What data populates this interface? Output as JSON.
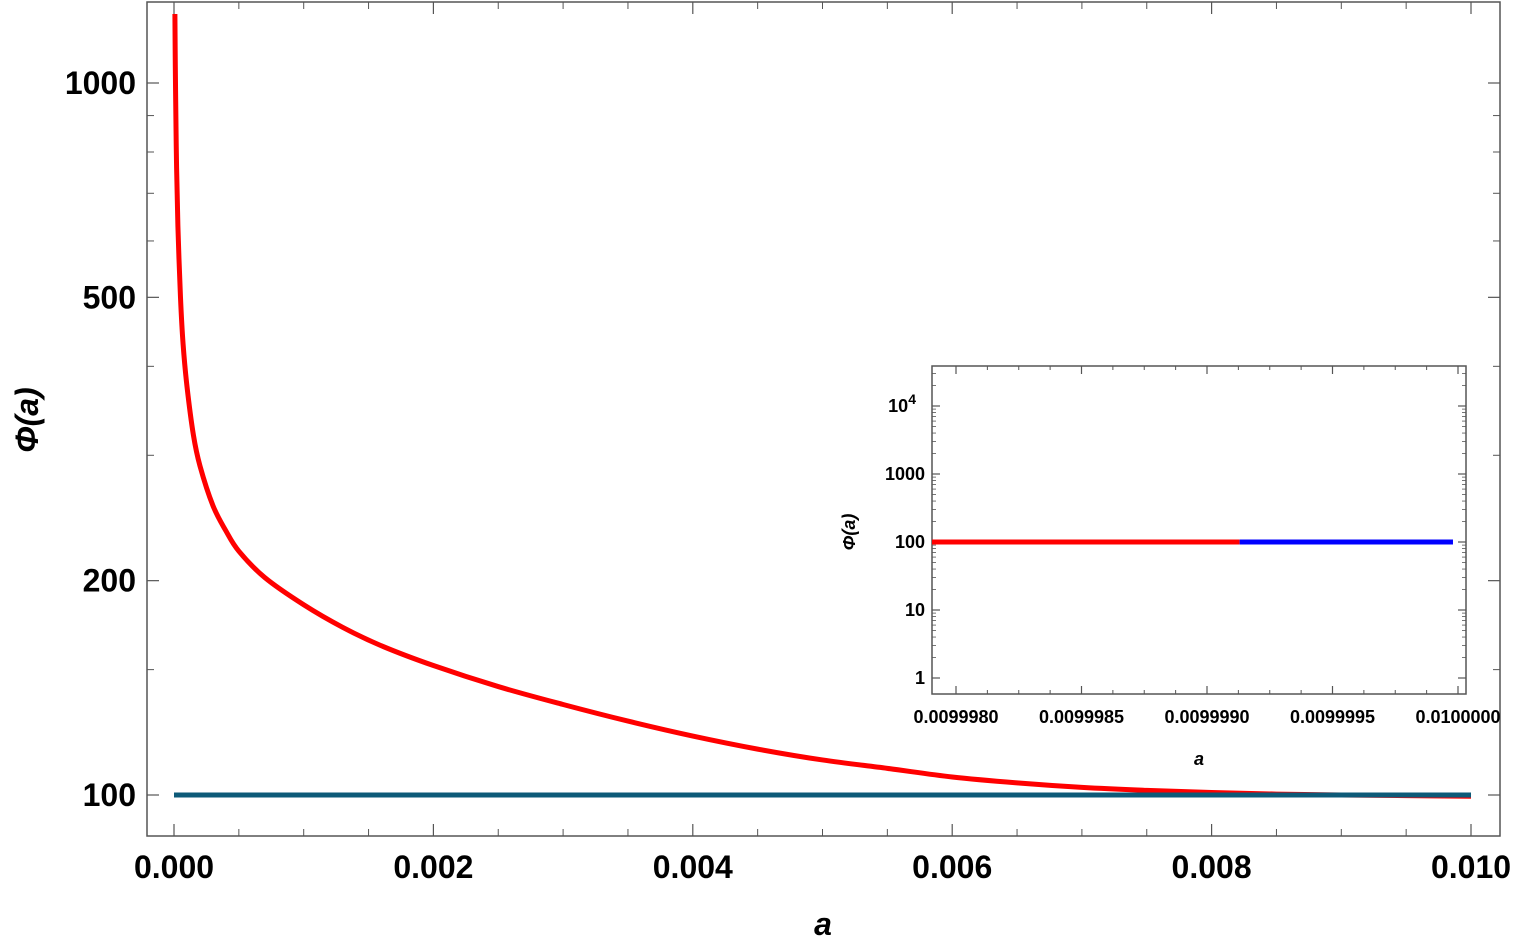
{
  "colors": {
    "frame": "#555555",
    "main_red": "#ff0000",
    "main_blue": "#0d5a78",
    "inset_red": "#ff0000",
    "inset_blue": "#0000ff"
  },
  "chart_data": [
    {
      "type": "line",
      "role": "main",
      "title": "",
      "xlabel": "a",
      "ylabel": "Φ(a)",
      "yscale": "log",
      "xlim": [
        -4e-05,
        0.01
      ],
      "ylim": [
        90,
        1250
      ],
      "grid": false,
      "legend": "none",
      "x_ticks": [
        {
          "value": 0.0,
          "label": "0.000"
        },
        {
          "value": 0.002,
          "label": "0.002"
        },
        {
          "value": 0.004,
          "label": "0.004"
        },
        {
          "value": 0.006,
          "label": "0.006"
        },
        {
          "value": 0.008,
          "label": "0.008"
        },
        {
          "value": 0.01,
          "label": "0.010"
        }
      ],
      "y_ticks": [
        {
          "value": 100,
          "label": "100"
        },
        {
          "value": 200,
          "label": "200"
        },
        {
          "value": 500,
          "label": "500"
        },
        {
          "value": 1000,
          "label": "1000"
        }
      ],
      "series": [
        {
          "color": "#ff0000",
          "x": [
            7e-06,
            1e-05,
            1.5e-05,
            2e-05,
            3e-05,
            5e-05,
            7e-05,
            0.0001,
            0.00015,
            0.0002,
            0.0003,
            0.0004,
            0.0005,
            0.0007,
            0.001,
            0.0013,
            0.0016,
            0.002,
            0.0025,
            0.003,
            0.0035,
            0.004,
            0.0045,
            0.005,
            0.0055,
            0.006,
            0.0065,
            0.007,
            0.0075,
            0.008,
            0.0085,
            0.009,
            0.0095,
            0.01
          ],
          "values": [
            1250,
            1060,
            880,
            760,
            630,
            500,
            430,
            375,
            320,
            290,
            255,
            235,
            220,
            202,
            185,
            172,
            162,
            152,
            142,
            134,
            127,
            121,
            116,
            112,
            109,
            106,
            104,
            102.5,
            101.5,
            100.8,
            100.3,
            100,
            99.8,
            99.6
          ]
        },
        {
          "color": "#0d5a78",
          "x": [
            0.0,
            0.01
          ],
          "values": [
            100,
            100
          ]
        }
      ]
    },
    {
      "type": "line",
      "role": "inset",
      "title": "",
      "xlabel": "a",
      "ylabel": "Φ(a)",
      "yscale": "log",
      "xlim": [
        0.0099979,
        0.01
      ],
      "ylim": [
        0.75,
        35000
      ],
      "grid": false,
      "legend": "none",
      "x_ticks": [
        {
          "value": 0.009998,
          "label": "0.0099980"
        },
        {
          "value": 0.0099985,
          "label": "0.0099985"
        },
        {
          "value": 0.009999,
          "label": "0.0099990"
        },
        {
          "value": 0.0099995,
          "label": "0.0099995"
        },
        {
          "value": 0.01,
          "label": "0.0100000"
        }
      ],
      "y_ticks": [
        {
          "value": 1,
          "label": "1"
        },
        {
          "value": 10,
          "label": "10"
        },
        {
          "value": 100,
          "label": "100"
        },
        {
          "value": 1000,
          "label": "1000"
        },
        {
          "value": 10000,
          "label": "10",
          "sup": "4"
        }
      ],
      "series": [
        {
          "color": "#ff0000",
          "x": [
            0.0099979,
            0.00999913
          ],
          "values": [
            100,
            100
          ]
        },
        {
          "color": "#0000ff",
          "x": [
            0.00999913,
            0.00999998
          ],
          "values": [
            100,
            100
          ]
        }
      ]
    }
  ]
}
